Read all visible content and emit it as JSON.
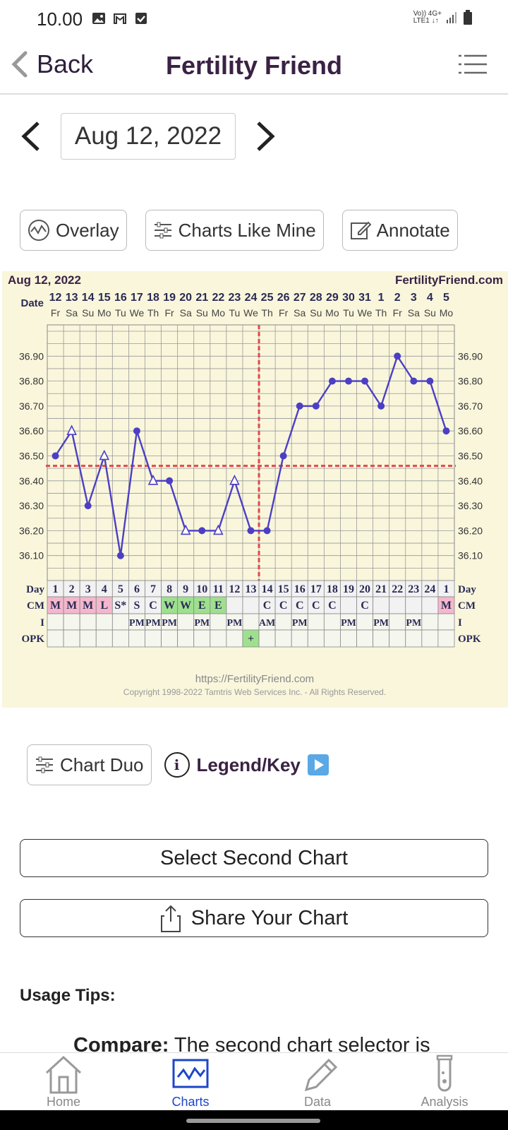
{
  "status": {
    "time": "10.00",
    "net_top": "Vo))  4G+",
    "net_bottom": "LTE1  ↓↑"
  },
  "header": {
    "back_label": "Back",
    "title": "Fertility Friend"
  },
  "date_nav": {
    "date": "Aug 12, 2022"
  },
  "toolbar": {
    "overlay": "Overlay",
    "charts_like_mine": "Charts Like Mine",
    "annotate": "Annotate"
  },
  "chart_data": {
    "type": "line",
    "header_date": "Aug 12, 2022",
    "brand": "FertilityFriend.com",
    "date_label": "Date",
    "dates": [
      "12",
      "13",
      "14",
      "15",
      "16",
      "17",
      "18",
      "19",
      "20",
      "21",
      "22",
      "23",
      "24",
      "25",
      "26",
      "27",
      "28",
      "29",
      "30",
      "31",
      "1",
      "2",
      "3",
      "4",
      "5"
    ],
    "weekdays": [
      "Fr",
      "Sa",
      "Su",
      "Mo",
      "Tu",
      "We",
      "Th",
      "Fr",
      "Sa",
      "Su",
      "Mo",
      "Tu",
      "We",
      "Th",
      "Fr",
      "Sa",
      "Su",
      "Mo",
      "Tu",
      "We",
      "Th",
      "Fr",
      "Sa",
      "Su",
      "Mo"
    ],
    "y_ticks": [
      "36.90",
      "36.80",
      "36.70",
      "36.60",
      "36.50",
      "36.40",
      "36.30",
      "36.20",
      "36.10"
    ],
    "ylim": [
      36.0,
      37.0
    ],
    "temps": [
      36.5,
      36.6,
      36.3,
      36.5,
      36.1,
      36.6,
      36.4,
      36.4,
      36.2,
      36.2,
      36.2,
      36.4,
      36.2,
      36.2,
      36.5,
      36.7,
      36.7,
      36.8,
      36.8,
      36.8,
      36.7,
      36.9,
      36.8,
      36.8,
      36.6
    ],
    "open_markers": [
      1,
      3,
      6,
      8,
      10,
      11
    ],
    "coverline": 36.46,
    "ovulation_day_index": 13,
    "row_labels": {
      "day": "Day",
      "cm": "CM",
      "i": "I",
      "opk": "OPK"
    },
    "days": [
      "1",
      "2",
      "3",
      "4",
      "5",
      "6",
      "7",
      "8",
      "9",
      "10",
      "11",
      "12",
      "13",
      "14",
      "15",
      "16",
      "17",
      "18",
      "19",
      "20",
      "21",
      "22",
      "23",
      "24",
      "1"
    ],
    "cm": [
      "M",
      "M",
      "M",
      "L",
      "S*",
      "S",
      "C",
      "W",
      "W",
      "E",
      "E",
      "",
      "",
      "C",
      "C",
      "C",
      "C",
      "C",
      "",
      "C",
      "",
      "",
      "",
      "",
      "M"
    ],
    "cm_colors": {
      "M": "#f4b8cc",
      "L": "#f4b8cc",
      "W": "#9fe08f",
      "E": "#9fe08f"
    },
    "intercourse": [
      "",
      "",
      "",
      "",
      "",
      "PM",
      "PM",
      "PM",
      "",
      "PM",
      "",
      "PM",
      "",
      "AM",
      "",
      "PM",
      "",
      "",
      "PM",
      "",
      "PM",
      "",
      "PM",
      "",
      ""
    ],
    "opk": [
      "",
      "",
      "",
      "",
      "",
      "",
      "",
      "",
      "",
      "",
      "",
      "",
      "+",
      "",
      "",
      "",
      "",
      "",
      "",
      "",
      "",
      "",
      "",
      "",
      ""
    ],
    "footer_url": "https://FertilityFriend.com",
    "footer_copy": "Copyright 1998-2022 Tamtris Web Services Inc. - All Rights Reserved.",
    "colors": {
      "line": "#4c3fc4",
      "coverline": "#e04a4a",
      "grid": "#999999",
      "bg": "#f9f6dc"
    }
  },
  "actions": {
    "chart_duo": "Chart Duo",
    "legend": "Legend/Key",
    "select_second": "Select Second Chart",
    "share": "Share Your Chart"
  },
  "tips": {
    "title": "Usage Tips:",
    "first_bold": "Compare:",
    "first_rest": " The second chart selector is"
  },
  "bottom_nav": {
    "home": "Home",
    "charts": "Charts",
    "data": "Data",
    "analysis": "Analysis",
    "active": "Charts"
  }
}
